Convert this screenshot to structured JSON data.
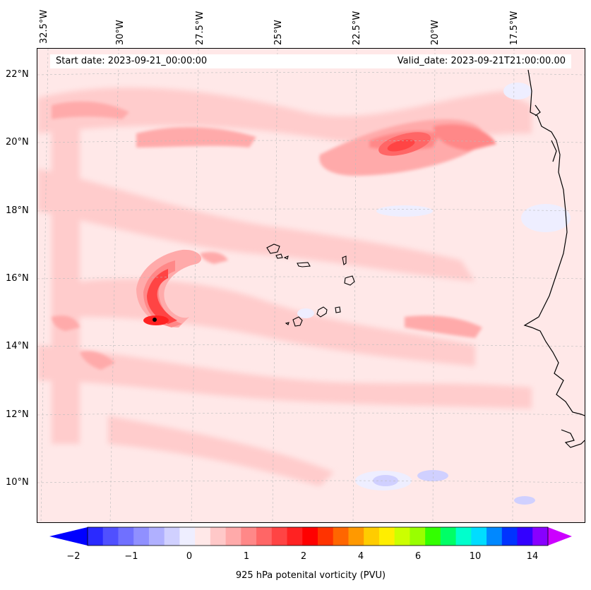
{
  "header": {
    "start_date": "Start date: 2023-09-21_00:00:00",
    "valid_date": "Valid_date: 2023-09-21T21:00:00.00"
  },
  "lon_labels": [
    "32.5°W",
    "30°W",
    "27.5°W",
    "25°W",
    "22.5°W",
    "20°W",
    "17.5°W"
  ],
  "lat_labels": [
    "22°N",
    "20°N",
    "18°N",
    "16°N",
    "14°N",
    "12°N",
    "10°N"
  ],
  "colorbar": {
    "label": "925 hPa potenital vorticity (PVU)",
    "ticks": [
      "−2",
      "−1",
      "0",
      "1",
      "2",
      "4",
      "6",
      "10",
      "14"
    ],
    "colors": [
      "#0000ff",
      "#2a2aff",
      "#5050ff",
      "#7070ff",
      "#9090ff",
      "#b0b0ff",
      "#d0d0ff",
      "#eeeeff",
      "#ffe8e8",
      "#ffc8c8",
      "#ffaaaa",
      "#ff8888",
      "#ff6666",
      "#ff4444",
      "#ff2222",
      "#ff0000",
      "#ff3300",
      "#ff6600",
      "#ff9900",
      "#ffcc00",
      "#ffee00",
      "#ccff00",
      "#99ff00",
      "#33ff00",
      "#00ff66",
      "#00ffcc",
      "#00ddff",
      "#0088ff",
      "#0033ff",
      "#3300ff",
      "#8800ff",
      "#cc00ff"
    ]
  },
  "map": {
    "fields": [
      {
        "kind": "ne-african-coast"
      },
      {
        "kind": "cape-verde-islands"
      },
      {
        "kind": "vortex-core"
      }
    ]
  }
}
